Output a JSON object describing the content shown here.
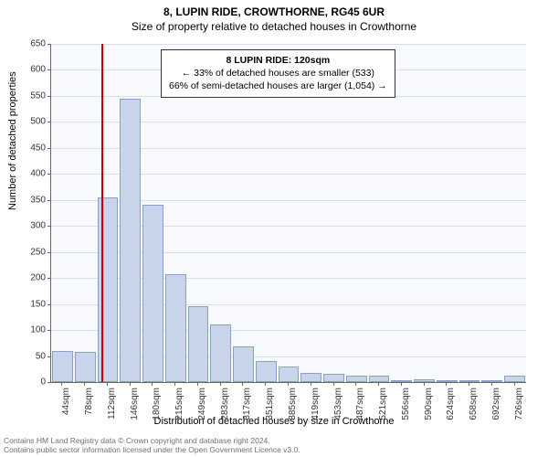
{
  "title_line1": "8, LUPIN RIDE, CROWTHORNE, RG45 6UR",
  "title_line2": "Size of property relative to detached houses in Crowthorne",
  "xaxis_label": "Distribution of detached houses by size in Crowthorne",
  "yaxis_label": "Number of detached properties",
  "chart": {
    "type": "bar",
    "background_color": "#f7f9fc",
    "grid_color": "#d9dfe8",
    "axis_color": "#666666",
    "bar_fill": "#c8d4ea",
    "bar_border": "#8aa0c8",
    "marker_color": "#cc0000",
    "marker_value": 120,
    "ylim": [
      0,
      650
    ],
    "ytick_step": 50,
    "x_start": 44,
    "x_step": 34,
    "x_categories": [
      "44sqm",
      "78sqm",
      "112sqm",
      "146sqm",
      "180sqm",
      "215sqm",
      "249sqm",
      "283sqm",
      "317sqm",
      "351sqm",
      "385sqm",
      "419sqm",
      "453sqm",
      "487sqm",
      "521sqm",
      "556sqm",
      "590sqm",
      "624sqm",
      "658sqm",
      "692sqm",
      "726sqm"
    ],
    "values": [
      60,
      58,
      355,
      545,
      340,
      208,
      145,
      110,
      68,
      40,
      30,
      18,
      15,
      12,
      12,
      4,
      6,
      3,
      2,
      2,
      12
    ],
    "bar_width_ratio": 0.92
  },
  "info_box": {
    "title": "8 LUPIN RIDE: 120sqm",
    "line2": "← 33% of detached houses are smaller (533)",
    "line3": "66% of semi-detached houses are larger (1,054) →",
    "border_color": "#333333",
    "background": "#ffffff",
    "fontsize": 10.5
  },
  "footer_line1": "Contains HM Land Registry data © Crown copyright and database right 2024.",
  "footer_line2": "Contains public sector information licensed under the Open Government Licence v3.0."
}
